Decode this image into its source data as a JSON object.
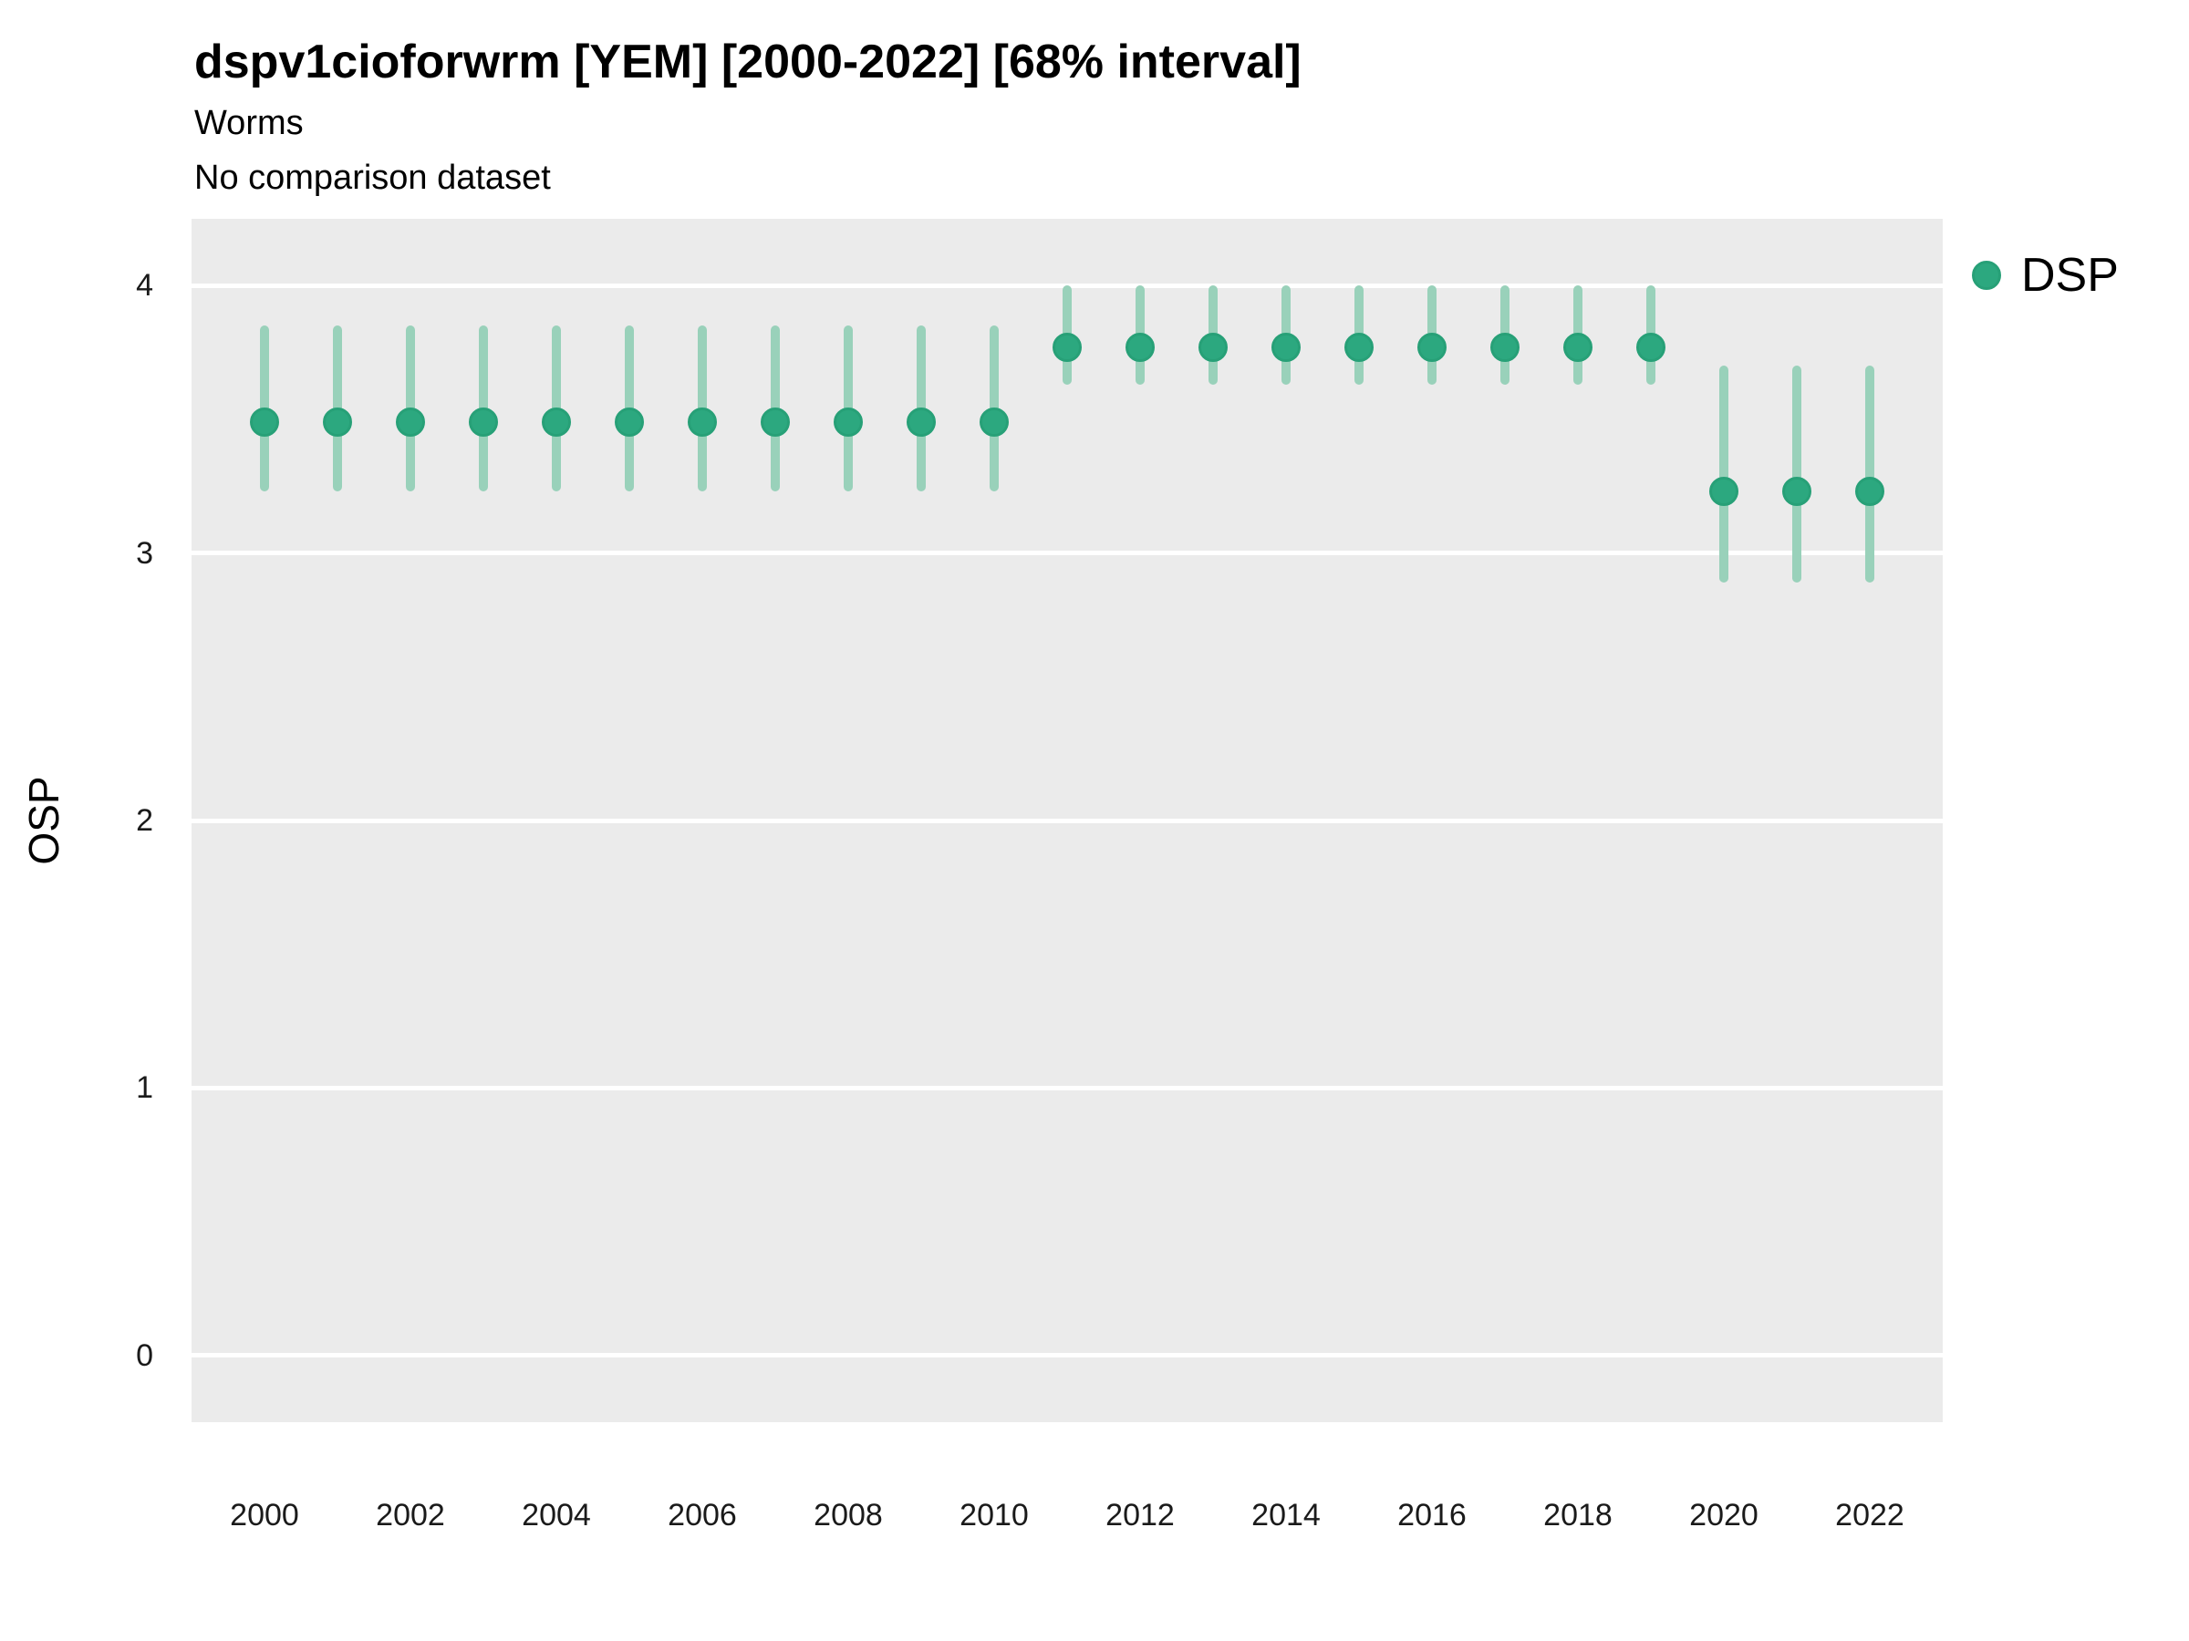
{
  "header": {
    "title": "dspv1cioforwrm [YEM] [2000-2022] [68% interval]",
    "subtitle": "Worms",
    "note": "No comparison dataset"
  },
  "legend": {
    "label": "DSP"
  },
  "colors": {
    "point_fill": "#2ca87f",
    "point_border": "#27a077",
    "interval_bar": "#99d1ba",
    "panel_bg": "#ebebeb",
    "gridline": "#ffffff",
    "text": "#000000",
    "axis_text": "#1a1a1a"
  },
  "chart_data": {
    "type": "scatter",
    "variant": "pointrange",
    "title": "dspv1cioforwrm [YEM] [2000-2022] [68% interval]",
    "subtitle": "Worms",
    "note": "No comparison dataset",
    "xlabel": "",
    "ylabel": "OSP",
    "interval": "68%",
    "x": [
      2000,
      2001,
      2002,
      2003,
      2004,
      2005,
      2006,
      2007,
      2008,
      2009,
      2010,
      2011,
      2012,
      2013,
      2014,
      2015,
      2016,
      2017,
      2018,
      2019,
      2020,
      2021,
      2022
    ],
    "series": [
      {
        "name": "DSP",
        "mean": [
          3.49,
          3.49,
          3.49,
          3.49,
          3.49,
          3.49,
          3.49,
          3.49,
          3.49,
          3.49,
          3.49,
          3.77,
          3.77,
          3.77,
          3.77,
          3.77,
          3.77,
          3.77,
          3.77,
          3.77,
          3.23,
          3.23,
          3.23
        ],
        "low": [
          3.23,
          3.23,
          3.23,
          3.23,
          3.23,
          3.23,
          3.23,
          3.23,
          3.23,
          3.23,
          3.23,
          3.63,
          3.63,
          3.63,
          3.63,
          3.63,
          3.63,
          3.63,
          3.63,
          3.63,
          2.89,
          2.89,
          2.89
        ],
        "high": [
          3.85,
          3.85,
          3.85,
          3.85,
          3.85,
          3.85,
          3.85,
          3.85,
          3.85,
          3.85,
          3.85,
          4.0,
          4.0,
          4.0,
          4.0,
          4.0,
          4.0,
          4.0,
          4.0,
          4.0,
          3.7,
          3.7,
          3.7
        ]
      }
    ],
    "xticks": [
      2000,
      2002,
      2004,
      2006,
      2008,
      2010,
      2012,
      2014,
      2016,
      2018,
      2020,
      2022
    ],
    "yticks": [
      0,
      1,
      2,
      3,
      4
    ],
    "xlim": [
      1999,
      2023
    ],
    "ylim": [
      -0.25,
      4.25
    ],
    "grid": "horizontal-major-only",
    "legend_position": "right-top"
  }
}
